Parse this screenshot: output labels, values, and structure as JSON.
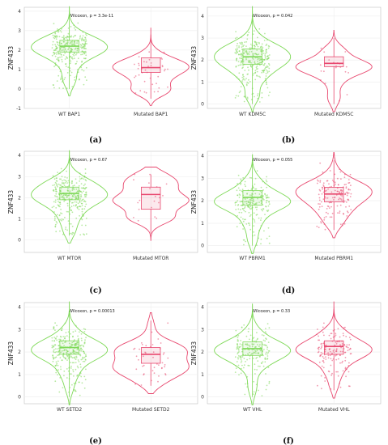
{
  "colors": {
    "wt": "#7ed957",
    "mutated": "#e8476e",
    "grid": "#ececec",
    "frame": "#bfbfbf",
    "axis_text": "#333333"
  },
  "chart_data": [
    {
      "type": "violin",
      "panel_label": "(a)",
      "ylabel": "ZNF433",
      "categories": [
        "WT BAP1",
        "Mutated BAP1"
      ],
      "yticks": [
        "-1",
        "0",
        "1",
        "2",
        "3",
        "4"
      ],
      "ylim": [
        -1,
        4.2
      ],
      "annotation": "Wilcoxon, p = 3.3e-11",
      "series": [
        {
          "group": "WT",
          "median": 2.2,
          "q1": 1.9,
          "q3": 2.5,
          "whisker_low": 0.0,
          "whisker_high": 3.9,
          "n_points": 300
        },
        {
          "group": "Mutated",
          "median": 1.1,
          "q1": 0.85,
          "q3": 1.6,
          "whisker_low": -0.5,
          "whisker_high": 2.8,
          "n_points": 40
        }
      ]
    },
    {
      "type": "violin",
      "panel_label": "(b)",
      "ylabel": "ZNF433",
      "categories": [
        "WT KDM5C",
        "Mutated KDM5C"
      ],
      "yticks": [
        "0",
        "1",
        "2",
        "3",
        "4"
      ],
      "ylim": [
        -0.2,
        4.4
      ],
      "annotation": "Wilcoxon, p = 0.042",
      "series": [
        {
          "group": "WT",
          "median": 2.15,
          "q1": 1.8,
          "q3": 2.5,
          "whisker_low": 0.0,
          "whisker_high": 4.1,
          "n_points": 300
        },
        {
          "group": "Mutated",
          "median": 1.85,
          "q1": 1.7,
          "q3": 2.15,
          "whisker_low": 0.0,
          "whisker_high": 3.0,
          "n_points": 20
        }
      ]
    },
    {
      "type": "violin",
      "panel_label": "(c)",
      "ylabel": "ZNF433",
      "categories": [
        "WT MTOR",
        "Mutated MTOR"
      ],
      "yticks": [
        "0",
        "1",
        "2",
        "3",
        "4"
      ],
      "ylim": [
        -0.6,
        4.2
      ],
      "annotation": "Wilcoxon, p = 0.67",
      "series": [
        {
          "group": "WT",
          "median": 2.2,
          "q1": 1.9,
          "q3": 2.5,
          "whisker_low": 0.2,
          "whisker_high": 3.9,
          "n_points": 300
        },
        {
          "group": "Mutated",
          "median": 2.15,
          "q1": 1.45,
          "q3": 2.5,
          "whisker_low": 0.3,
          "whisker_high": 3.1,
          "n_points": 20
        }
      ]
    },
    {
      "type": "violin",
      "panel_label": "(d)",
      "ylabel": "ZNF433",
      "categories": [
        "WT PBRM1",
        "Mutated PBRM1"
      ],
      "yticks": [
        "0",
        "1",
        "2",
        "3",
        "4"
      ],
      "ylim": [
        -0.3,
        4.2
      ],
      "annotation": "Wilcoxon, p = 0.055",
      "series": [
        {
          "group": "WT",
          "median": 2.15,
          "q1": 1.8,
          "q3": 2.45,
          "whisker_low": 0.0,
          "whisker_high": 3.7,
          "n_points": 220
        },
        {
          "group": "Mutated",
          "median": 2.3,
          "q1": 1.95,
          "q3": 2.6,
          "whisker_low": 0.7,
          "whisker_high": 3.8,
          "n_points": 150
        }
      ]
    },
    {
      "type": "violin",
      "panel_label": "(e)",
      "ylabel": "ZNF433",
      "categories": [
        "WT SETD2",
        "Mutated SETD2"
      ],
      "yticks": [
        "0",
        "1",
        "2",
        "3",
        "4"
      ],
      "ylim": [
        -0.3,
        4.2
      ],
      "annotation": "Wilcoxon, p = 0.00013",
      "series": [
        {
          "group": "WT",
          "median": 2.2,
          "q1": 1.9,
          "q3": 2.5,
          "whisker_low": 0.0,
          "whisker_high": 3.9,
          "n_points": 300
        },
        {
          "group": "Mutated",
          "median": 1.9,
          "q1": 1.5,
          "q3": 2.2,
          "whisker_low": 0.5,
          "whisker_high": 3.4,
          "n_points": 45
        }
      ]
    },
    {
      "type": "violin",
      "panel_label": "(f)",
      "ylabel": "ZNF433",
      "categories": [
        "WT VHL",
        "Mutated VHL"
      ],
      "yticks": [
        "0",
        "1",
        "2",
        "3",
        "4"
      ],
      "ylim": [
        -0.3,
        4.2
      ],
      "annotation": "Wilcoxon, p = 0.33",
      "series": [
        {
          "group": "WT",
          "median": 2.15,
          "q1": 1.85,
          "q3": 2.45,
          "whisker_low": 0.0,
          "whisker_high": 3.8,
          "n_points": 200
        },
        {
          "group": "Mutated",
          "median": 2.25,
          "q1": 1.9,
          "q3": 2.5,
          "whisker_low": 0.3,
          "whisker_high": 3.9,
          "n_points": 160
        }
      ]
    }
  ]
}
